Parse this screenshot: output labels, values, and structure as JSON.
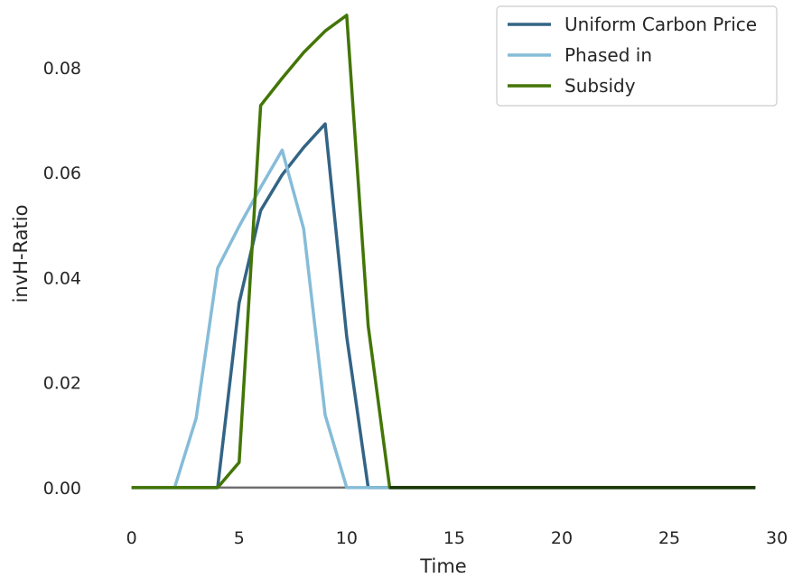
{
  "chart_data": {
    "type": "line",
    "xlabel": "Time",
    "ylabel": "invH-Ratio",
    "xlim": [
      -1.5,
      30.5
    ],
    "ylim": [
      -0.0045,
      0.0905
    ],
    "xticks": [
      0,
      5,
      10,
      15,
      20,
      25,
      30
    ],
    "yticks": [
      0.0,
      0.02,
      0.04,
      0.06,
      0.08
    ],
    "xtick_labels": [
      "0",
      "5",
      "10",
      "15",
      "20",
      "25",
      "30"
    ],
    "ytick_labels": [
      "0.00",
      "0.02",
      "0.04",
      "0.06",
      "0.08"
    ],
    "grid": false,
    "legend_position": "top-right",
    "baseline": {
      "y": 0,
      "x": [
        0,
        29
      ],
      "color": "#6e6e6e"
    },
    "x": [
      0,
      1,
      2,
      3,
      4,
      5,
      6,
      7,
      8,
      9,
      10,
      11,
      12,
      13,
      14,
      15,
      16,
      17,
      18,
      19,
      20,
      21,
      22,
      23,
      24,
      25,
      26,
      27,
      28,
      29
    ],
    "series": [
      {
        "name": "Uniform Carbon Price",
        "color": "#336485",
        "values": [
          0,
          0,
          0,
          0,
          0,
          0.0352,
          0.0528,
          0.0596,
          0.0648,
          0.0693,
          0.0288,
          0,
          0,
          0,
          0,
          0,
          0,
          0,
          0,
          0,
          0,
          0,
          0,
          0,
          0,
          0,
          0,
          0,
          0,
          0
        ]
      },
      {
        "name": "Phased in",
        "color": "#86bcd8",
        "values": [
          0,
          0,
          0,
          0.0132,
          0.0418,
          0.0498,
          0.0572,
          0.0643,
          0.0493,
          0.0138,
          0,
          0,
          0,
          0,
          0,
          0,
          0,
          0,
          0,
          0,
          0,
          0,
          0,
          0,
          0,
          0,
          0,
          0,
          0,
          0
        ]
      },
      {
        "name": "Subsidy",
        "color": "#437507",
        "values": [
          0,
          0,
          0,
          0,
          0,
          0.0048,
          0.0728,
          0.078,
          0.0829,
          0.087,
          0.09,
          0.0308,
          0,
          0,
          0,
          0,
          0,
          0,
          0,
          0,
          0,
          0,
          0,
          0,
          0,
          0,
          0,
          0,
          0,
          0
        ]
      }
    ],
    "tail_color": "#1c3808"
  }
}
